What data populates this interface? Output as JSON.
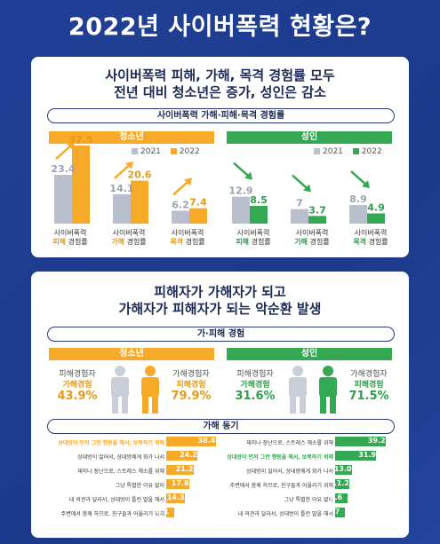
{
  "title": "2022년 사이버폭력 현황은?",
  "section1": {
    "headline1": "사이버폭력 피해, 가해, 목격 경험률 모두",
    "headline2": "전년 대비 청소년은 증가, 성인은 감소",
    "pill": "사이버폭력 가해·피해·목격 경험률",
    "youth_label": "청소년",
    "adult_label": "성인",
    "legend_2021": "2021",
    "legend_2022": "2022",
    "captions": [
      {
        "line1": "사이버폭력",
        "hl": "피해",
        "rest": " 경험률"
      },
      {
        "line1": "사이버폭력",
        "hl": "가해",
        "rest": " 경험률"
      },
      {
        "line1": "사이버폭력",
        "hl": "목격",
        "rest": " 경험률"
      }
    ]
  },
  "section2": {
    "headline1": "피해자가 가해자가 되고",
    "headline2": "가해자가 피해자가 되는 악순환 발생",
    "pill": "가·피해 경험",
    "youth_label": "청소년",
    "adult_label": "성인",
    "youth_left_l1": "피해경험자",
    "youth_left_l2": "가해경험",
    "youth_left_val": "43.9%",
    "youth_right_l1": "가해경험자",
    "youth_right_l2": "피해경험",
    "youth_right_val": "79.9%",
    "adult_left_l1": "피해경험자",
    "adult_left_l2": "가해경험",
    "adult_left_val": "31.6%",
    "adult_right_l1": "가해경험자",
    "adult_right_l2": "피해경험",
    "adult_right_val": "71.5%",
    "motive_pill": "가해 동기",
    "youth_motives": [
      {
        "label": "상대방이 먼저 그런 행동을 해서, 보복하기 위해",
        "value": 38.4,
        "highlight": true
      },
      {
        "label": "상대방이 싫어서, 상대방에게 화가 나서",
        "value": 24.2,
        "highlight": false
      },
      {
        "label": "재미나 장난으로, 스트레스 해소를 위해",
        "value": 21.2,
        "highlight": false
      },
      {
        "label": "그냥 특별한 이유 없이",
        "value": 17.8,
        "highlight": false
      },
      {
        "label": "내 의견과 달라서, 상대방이 틀린 말을 해서",
        "value": 14.3,
        "highlight": false
      },
      {
        "label": "주변에서 함께 하므로, 친구들과 어울리기 위해",
        "value": 6.1,
        "highlight": false
      }
    ],
    "adult_motives": [
      {
        "label": "재미나 장난으로, 스트레스 해소를 위해",
        "value": 39.2,
        "highlight": false
      },
      {
        "label": "상대방이 먼저 그런 행동을 해서, 보복하기 위해",
        "value": 31.9,
        "highlight": true
      },
      {
        "label": "상대방이 싫어서, 상대방에게 화가 나서",
        "value": 13.0,
        "highlight": false
      },
      {
        "label": "주변에서 함께 하므로, 친구들과 어울리기 위해",
        "value": 11.2,
        "highlight": false
      },
      {
        "label": "그냥 특별한 이유 없이",
        "value": 9.6,
        "highlight": false
      },
      {
        "label": "내 의견과 달라서, 상대방이 틀린 말을 해서",
        "value": 7.7,
        "highlight": false
      }
    ]
  },
  "colors": {
    "youth": "#f7a928",
    "adult": "#34a853",
    "y2021": "#b9bfcd",
    "navy": "#1c2a55",
    "adult_value": "#2e9e4b",
    "youth_value": "#e89a12"
  },
  "chart_data": [
    {
      "type": "bar",
      "group": "청소년",
      "categories": [
        "사이버폭력 피해 경험률",
        "사이버폭력 가해 경험률",
        "사이버폭력 목격 경험률"
      ],
      "series": [
        {
          "name": "2021",
          "values": [
            23.4,
            14.1,
            6.2
          ]
        },
        {
          "name": "2022",
          "values": [
            37.5,
            20.6,
            7.4
          ]
        }
      ]
    },
    {
      "type": "bar",
      "group": "성인",
      "categories": [
        "사이버폭력 피해 경험률",
        "사이버폭력 가해 경험률",
        "사이버폭력 목격 경험률"
      ],
      "series": [
        {
          "name": "2021",
          "values": [
            12.9,
            7.0,
            8.9
          ]
        },
        {
          "name": "2022",
          "values": [
            8.5,
            3.7,
            4.9
          ]
        }
      ]
    }
  ]
}
